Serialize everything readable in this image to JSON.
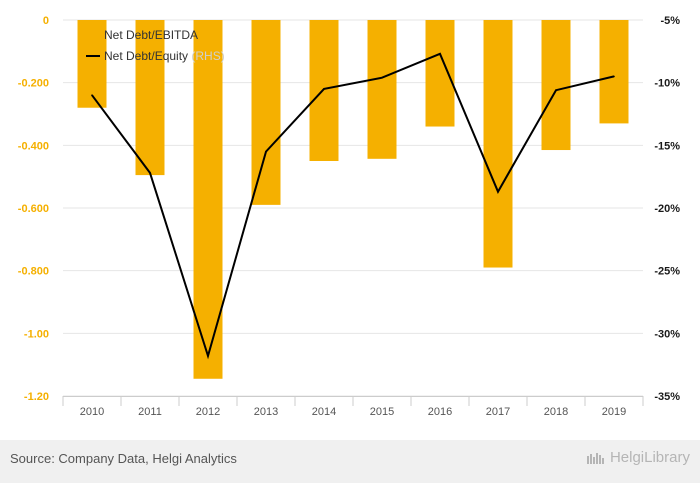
{
  "chart_data": {
    "type": "bar+line",
    "categories": [
      "2010",
      "2011",
      "2012",
      "2013",
      "2014",
      "2015",
      "2016",
      "2017",
      "2018",
      "2019"
    ],
    "series": [
      {
        "name": "Net Debt/EBITDA",
        "type": "bar",
        "axis": "left",
        "color": "#f5b000",
        "values": [
          -0.28,
          -0.495,
          -1.145,
          -0.59,
          -0.45,
          -0.443,
          -0.34,
          -0.79,
          -0.415,
          -0.33
        ]
      },
      {
        "name": "Net Debt/Equity",
        "legend_suffix": " (RHS)",
        "type": "line",
        "axis": "right",
        "color": "#000000",
        "values": [
          -11.0,
          -17.2,
          -31.8,
          -15.5,
          -10.5,
          -9.6,
          -7.7,
          -18.7,
          -10.6,
          -9.5
        ]
      }
    ],
    "y_left": {
      "min": -1.2,
      "max": 0,
      "ticks": [
        0,
        -0.2,
        -0.4,
        -0.6,
        -0.8,
        -1.0,
        -1.2
      ],
      "tick_labels": [
        "0",
        "-0.200",
        "-0.400",
        "-0.600",
        "-0.800",
        "-1.00",
        "-1.20"
      ]
    },
    "y_right": {
      "min": -35,
      "max": -5,
      "ticks": [
        -5,
        -10,
        -15,
        -20,
        -25,
        -30,
        -35
      ],
      "tick_labels": [
        "-5%",
        "-10%",
        "-15%",
        "-20%",
        "-25%",
        "-30%",
        "-35%"
      ]
    },
    "grid": true,
    "legend_position": "top-left"
  },
  "footer": {
    "source": "Source: Company Data, Helgi Analytics",
    "brand": "HelgiLibrary"
  }
}
